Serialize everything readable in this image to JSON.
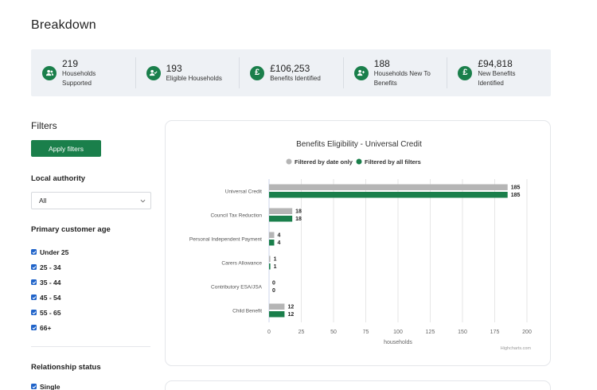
{
  "page": {
    "title": "Breakdown"
  },
  "stats": [
    {
      "value": "219",
      "label_line1": "Households",
      "label_line2": "Supported",
      "icon": "users-icon"
    },
    {
      "value": "193",
      "label_line1": "Eligible Households",
      "label_line2": "",
      "icon": "user-check-icon"
    },
    {
      "value": "£106,253",
      "label_line1": "Benefits Identified",
      "label_line2": "",
      "icon": "pound-icon"
    },
    {
      "value": "188",
      "label_line1": "Households New To",
      "label_line2": "Benefits",
      "icon": "user-plus-icon"
    },
    {
      "value": "£94,818",
      "label_line1": "New Benefits",
      "label_line2": "Identified",
      "icon": "pound-icon"
    }
  ],
  "filters": {
    "title": "Filters",
    "apply_label": "Apply filters",
    "local_authority": {
      "label": "Local authority",
      "selected": "All"
    },
    "age": {
      "label": "Primary customer age",
      "options": [
        "Under 25",
        "25 - 34",
        "35 - 44",
        "45 - 54",
        "55 - 65",
        "66+"
      ]
    },
    "relationship": {
      "label": "Relationship status",
      "options": [
        "Single"
      ]
    }
  },
  "chart_data": {
    "type": "bar",
    "orientation": "horizontal",
    "title": "Benefits Eligibility - Universal Credit",
    "categories": [
      "Universal Credit",
      "Council Tax Reduction",
      "Personal Independent Payment",
      "Carers Allowance",
      "Contributory ESA/JSA",
      "Child Benefit"
    ],
    "series": [
      {
        "name": "Filtered by date only",
        "color": "#b5b5b5",
        "values": [
          185,
          18,
          4,
          1,
          0,
          12
        ]
      },
      {
        "name": "Filtered by all filters",
        "color": "#1a7f4b",
        "values": [
          185,
          18,
          4,
          1,
          0,
          12
        ]
      }
    ],
    "xlabel": "households",
    "xlim": [
      0,
      200
    ],
    "xticks": [
      0,
      25,
      50,
      75,
      100,
      125,
      150,
      175,
      200
    ],
    "grid": true,
    "legend": "top-center",
    "credits": "Highcharts.com"
  }
}
